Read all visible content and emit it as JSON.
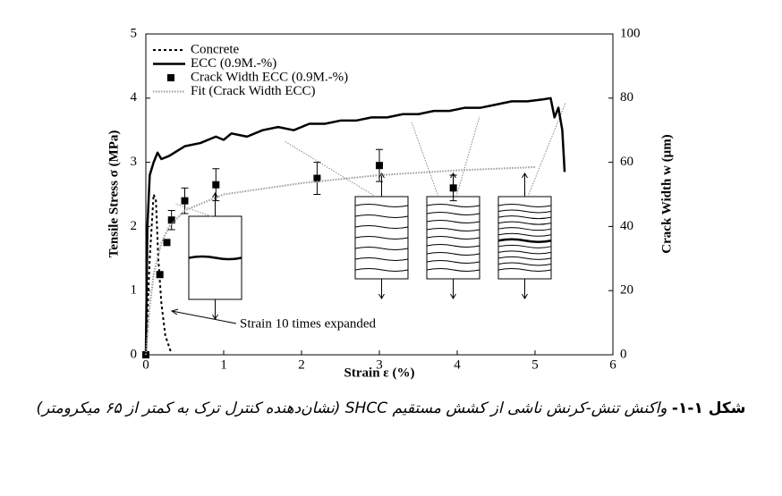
{
  "chart_data": {
    "type": "line",
    "xlabel": "Strain ε (%)",
    "ylabel": "Tensile Stress σ (MPa)",
    "y2label": "Crack Width w (μm)",
    "xlim": [
      0,
      6
    ],
    "xticks": [
      0,
      1,
      2,
      3,
      4,
      5,
      6
    ],
    "ylim": [
      0,
      5
    ],
    "yticks": [
      0,
      1,
      2,
      3,
      4,
      5
    ],
    "y2lim": [
      0,
      100
    ],
    "y2ticks": [
      0,
      20,
      40,
      60,
      80,
      100
    ],
    "legend": "upper left",
    "annotation": "Strain 10 times expanded",
    "series": [
      {
        "name": "Concrete",
        "color": "#000000",
        "style": "dashed",
        "axis": "y",
        "x": [
          0,
          0.05,
          0.1,
          0.13,
          0.16,
          0.2,
          0.25,
          0.32
        ],
        "values": [
          0,
          1.5,
          2.5,
          2.4,
          1.5,
          0.8,
          0.3,
          0.05
        ]
      },
      {
        "name": "ECC (0.9M.-%)",
        "color": "#000000",
        "style": "solid",
        "axis": "y",
        "x": [
          0,
          0.02,
          0.05,
          0.1,
          0.15,
          0.2,
          0.3,
          0.5,
          0.7,
          0.9,
          1.0,
          1.1,
          1.3,
          1.5,
          1.7,
          1.9,
          2.1,
          2.3,
          2.5,
          2.7,
          2.9,
          3.1,
          3.3,
          3.5,
          3.7,
          3.9,
          4.1,
          4.3,
          4.5,
          4.7,
          4.9,
          5.1,
          5.2,
          5.25,
          5.3,
          5.35,
          5.38
        ],
        "values": [
          0,
          2.0,
          2.8,
          3.0,
          3.15,
          3.05,
          3.1,
          3.25,
          3.3,
          3.4,
          3.35,
          3.45,
          3.4,
          3.5,
          3.55,
          3.5,
          3.6,
          3.6,
          3.65,
          3.65,
          3.7,
          3.7,
          3.75,
          3.75,
          3.8,
          3.8,
          3.85,
          3.85,
          3.9,
          3.95,
          3.95,
          3.98,
          4.0,
          3.7,
          3.85,
          3.5,
          2.85
        ]
      },
      {
        "name": "Crack Width ECC (0.9M.-%)",
        "color": "#000000",
        "style": "markers",
        "axis": "y2",
        "x": [
          0,
          0.18,
          0.27,
          0.33,
          0.5,
          0.9,
          2.2,
          3.0,
          3.95
        ],
        "values": [
          0,
          25,
          35,
          42,
          48,
          53,
          55,
          59,
          52
        ],
        "errors": [
          null,
          null,
          null,
          3,
          4,
          5,
          5,
          5,
          4
        ]
      },
      {
        "name": "Fit (Crack Width ECC)",
        "color": "#999999",
        "style": "dotted",
        "axis": "y2",
        "x": [
          0,
          0.05,
          0.1,
          0.2,
          0.3,
          0.5,
          1,
          2,
          3,
          4,
          5
        ],
        "values": [
          0,
          15,
          25,
          35,
          40,
          45,
          50,
          53.5,
          56,
          57.5,
          58.5
        ]
      }
    ]
  },
  "caption": {
    "label": "شکل ۱-۱-",
    "text": "واکنش تنش-کرنش ناشی از کشش مستقیم SHCC (نشان‌دهنده کنترل ترک به کمتر از ۶۵ میکرومتر)"
  }
}
